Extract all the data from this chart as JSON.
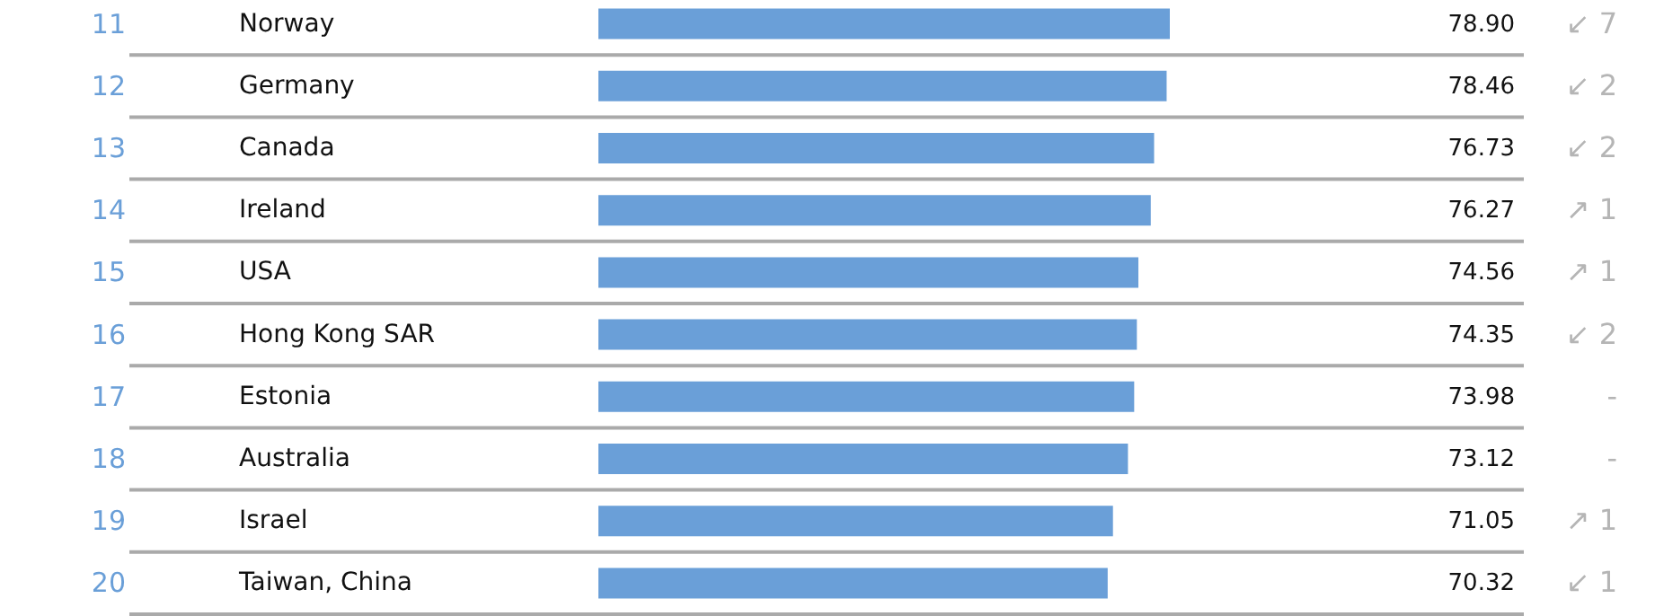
{
  "chart_data": {
    "type": "bar",
    "orientation": "horizontal",
    "color": "#6a9fd8",
    "categories": [
      "Norway",
      "Germany",
      "Canada",
      "Ireland",
      "USA",
      "Hong Kong SAR",
      "Estonia",
      "Australia",
      "Israel",
      "Taiwan, China"
    ],
    "values": [
      78.9,
      78.46,
      76.73,
      76.27,
      74.56,
      74.35,
      73.98,
      73.12,
      71.05,
      70.32
    ],
    "value_labels": [
      "78.90",
      "78.46",
      "76.73",
      "76.27",
      "74.56",
      "74.35",
      "73.98",
      "73.12",
      "71.05",
      "70.32"
    ],
    "annotations": [
      "11",
      "12",
      "13",
      "14",
      "15",
      "16",
      "17",
      "18",
      "19",
      "20",
      "↙ 7",
      "↙ 2",
      "↙ 2",
      "↗ 1",
      "↗ 1",
      "↙ 2",
      "-",
      "-",
      "↗ 1",
      "↙ 1"
    ]
  }
}
